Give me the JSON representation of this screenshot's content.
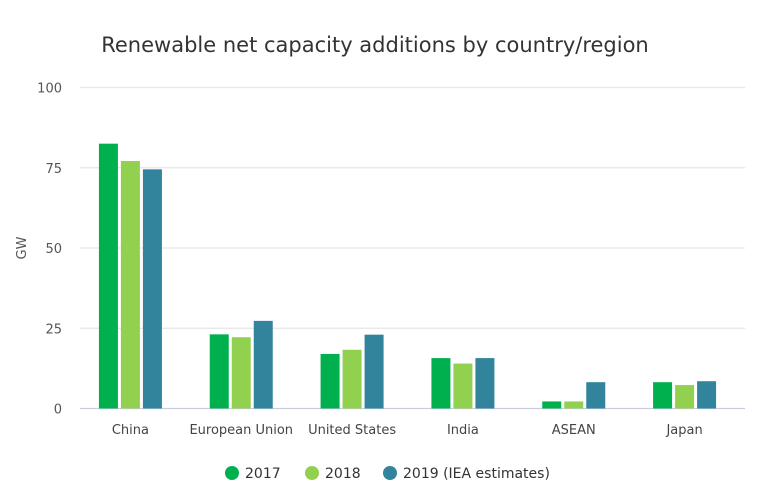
{
  "chart_data": {
    "type": "bar",
    "title": "Renewable net capacity additions by country/region",
    "xlabel": "",
    "ylabel": "GW",
    "ylim": [
      0,
      100
    ],
    "yticks": [
      0,
      25,
      50,
      75,
      100
    ],
    "grid": true,
    "legend_position": "bottom",
    "categories": [
      "China",
      "European Union",
      "United States",
      "India",
      "ASEAN",
      "Japan"
    ],
    "series": [
      {
        "name": "2017",
        "color": "#00b04f",
        "values": [
          82.5,
          23.1,
          17.0,
          15.7,
          2.2,
          8.2
        ]
      },
      {
        "name": "2018",
        "color": "#92d050",
        "values": [
          77.1,
          22.2,
          18.3,
          14.0,
          2.2,
          7.3
        ]
      },
      {
        "name": "2019 (IEA estimates)",
        "color": "#31849b",
        "values": [
          74.5,
          27.3,
          23.0,
          15.7,
          8.2,
          8.5
        ]
      }
    ]
  }
}
